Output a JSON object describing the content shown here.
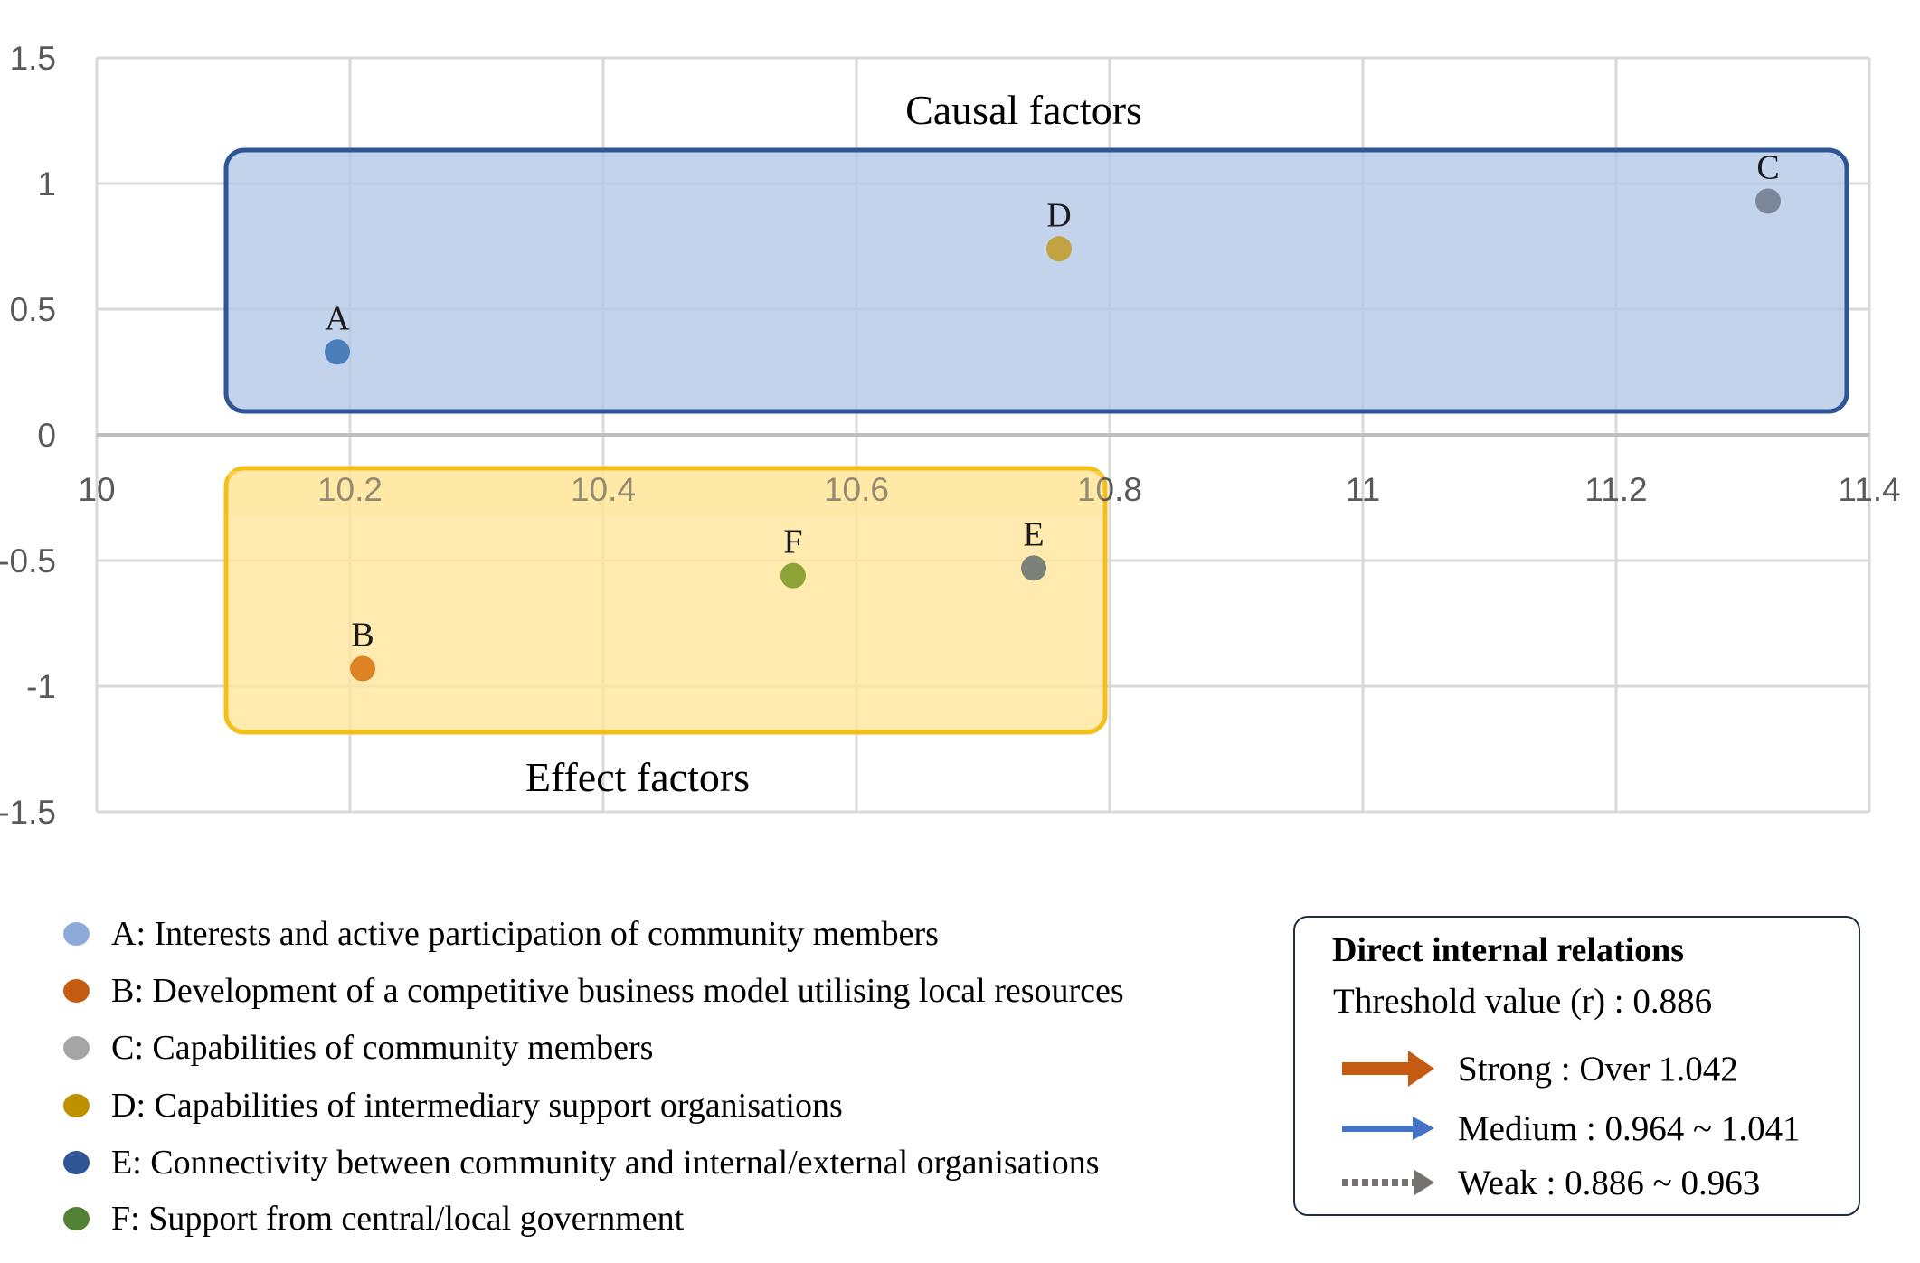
{
  "chart_data": {
    "type": "scatter",
    "title": "",
    "xlabel": "",
    "ylabel": "",
    "xlim": [
      10,
      11.4
    ],
    "ylim": [
      -1.5,
      1.5
    ],
    "x_ticks": [
      "10",
      "10.2",
      "10.4",
      "10.6",
      "10.8",
      "11",
      "11.2",
      "11.4"
    ],
    "x_tick_values": [
      10,
      10.2,
      10.4,
      10.6,
      10.8,
      11,
      11.2,
      11.4
    ],
    "y_ticks": [
      "1.5",
      "1",
      "0.5",
      "0",
      "-0.5",
      "-1",
      "-1.5"
    ],
    "y_tick_values": [
      1.5,
      1,
      0.5,
      0,
      -0.5,
      -1,
      -1.5
    ],
    "grid": true,
    "points": [
      {
        "label": "A",
        "x": 10.19,
        "y": 0.33,
        "color": "#4a7ebb"
      },
      {
        "label": "B",
        "x": 10.21,
        "y": -0.93,
        "color": "#dd8324"
      },
      {
        "label": "C",
        "x": 11.32,
        "y": 0.93,
        "color": "#7c879c"
      },
      {
        "label": "D",
        "x": 10.76,
        "y": 0.74,
        "color": "#c3a341"
      },
      {
        "label": "E",
        "x": 10.74,
        "y": -0.53,
        "color": "#7b8079"
      },
      {
        "label": "F",
        "x": 10.55,
        "y": -0.56,
        "color": "#8ea335"
      }
    ],
    "regions": [
      {
        "label": "Causal factors",
        "fill": "#b4c7e7",
        "stroke": "#2f5597"
      },
      {
        "label": "Effect factors",
        "fill": "#ffe699",
        "stroke": "#f5bf1a"
      }
    ]
  },
  "legend": [
    {
      "text": "A: Interests and active participation of community members",
      "color": "#8eaadb"
    },
    {
      "text": "B: Development of a competitive business model utilising local resources",
      "color": "#c55a11"
    },
    {
      "text": "C: Capabilities of community members",
      "color": "#a5a5a5"
    },
    {
      "text": "D: Capabilities of intermediary support organisations",
      "color": "#bf9000"
    },
    {
      "text": "E: Connectivity between community and internal/external organisations",
      "color": "#2f5597"
    },
    {
      "text": "F: Support from central/local government",
      "color": "#538135"
    }
  ],
  "relations": {
    "title": "Direct internal relations",
    "threshold": "Threshold value (r) : 0.886",
    "rows": [
      {
        "label": "Strong : Over 1.042",
        "style": "strong",
        "color": "#c55a11"
      },
      {
        "label": "Medium : 0.964 ~ 1.041",
        "style": "medium",
        "color": "#4472c4"
      },
      {
        "label": "Weak : 0.886 ~ 0.963",
        "style": "weak",
        "color": "#767171"
      }
    ]
  }
}
